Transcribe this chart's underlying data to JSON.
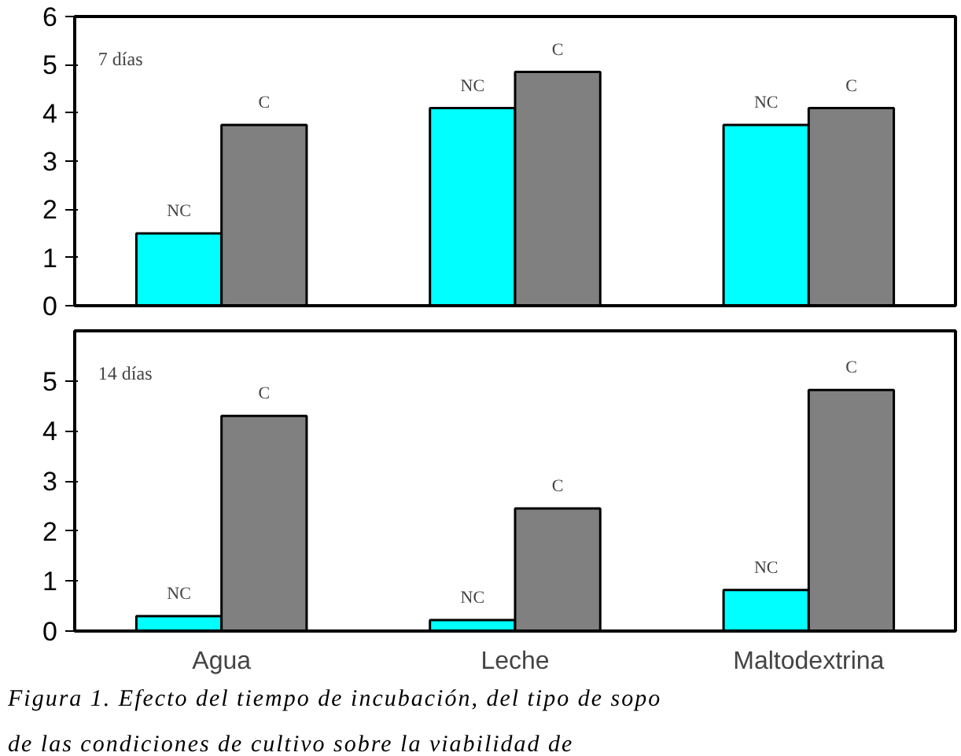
{
  "chart_data": [
    {
      "type": "bar",
      "title": "7 días",
      "categories": [
        null,
        null,
        null
      ],
      "ylim": [
        0,
        6
      ],
      "yticks": [
        0,
        1,
        2,
        3,
        4,
        5,
        6
      ],
      "grid": false,
      "series": [
        {
          "name": "NC",
          "color": "#00ffff",
          "values": [
            1.5,
            4.1,
            3.75
          ]
        },
        {
          "name": "C",
          "color": "#808080",
          "values": [
            3.75,
            4.85,
            4.1
          ]
        }
      ]
    },
    {
      "type": "bar",
      "title": "14 días",
      "categories": [
        "Agua",
        "Leche",
        "Maltodextrina"
      ],
      "ylim": [
        0,
        6
      ],
      "yticks": [
        0,
        1,
        2,
        3,
        4,
        5
      ],
      "grid": false,
      "series": [
        {
          "name": "NC",
          "color": "#00ffff",
          "values": [
            0.3,
            0.22,
            0.82
          ]
        },
        {
          "name": "C",
          "color": "#808080",
          "values": [
            4.3,
            2.45,
            4.82
          ]
        }
      ],
      "annotations": [
        "Figura 1. Efecto del tiempo de incubación, del tipo de sopo",
        "de las condiciones de cultivo sobre la viabilidad de"
      ]
    }
  ]
}
